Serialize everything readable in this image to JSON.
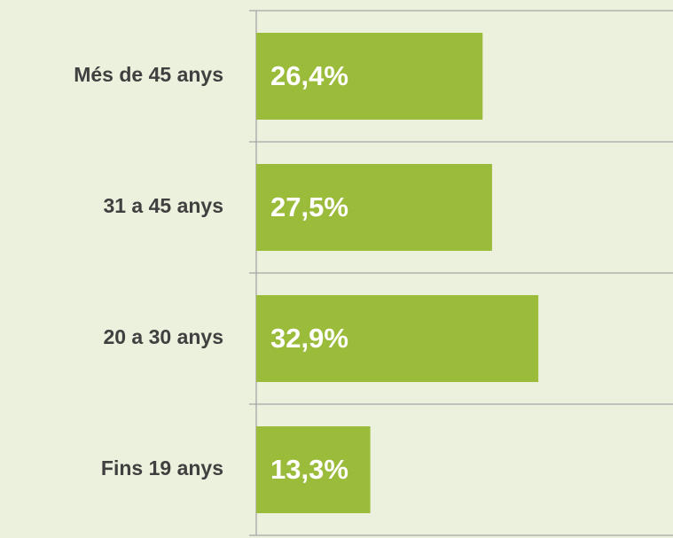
{
  "chart_data": {
    "type": "bar",
    "orientation": "horizontal",
    "categories": [
      "Més de 45 anys",
      "31 a 45 anys",
      "20 a 30 anys",
      "Fins 19 anys"
    ],
    "values": [
      26.4,
      27.5,
      32.9,
      13.3
    ],
    "value_labels": [
      "26,4%",
      "27,5%",
      "32,9%",
      "13,3%"
    ],
    "color": "#9bbb3a",
    "grid": true
  }
}
